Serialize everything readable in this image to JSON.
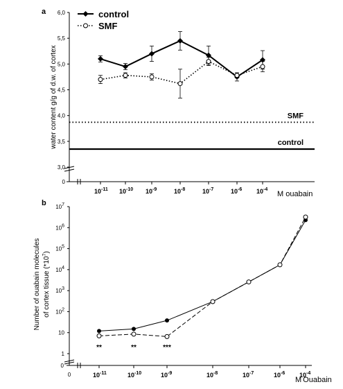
{
  "chart_data": [
    {
      "type": "line",
      "panel": "a",
      "ylabel": "water content g/g of d.w. of cortex",
      "xunit": "M ouabain",
      "categories": [
        "10^-11",
        "10^-10",
        "10^-9",
        "10^-8",
        "10^-7",
        "10^-6",
        "10^-4"
      ],
      "category_tick_labels": [
        [
          "10",
          "-11"
        ],
        [
          "10",
          "-10"
        ],
        [
          "10",
          "-9"
        ],
        [
          "10",
          "-8"
        ],
        [
          "10",
          "-7"
        ],
        [
          "10",
          "-6"
        ],
        [
          "10",
          "-4"
        ]
      ],
      "y_ticks": [
        "0",
        "3,0",
        "3,5",
        "4,0",
        "4,5",
        "5,0",
        "5,5",
        "6,0"
      ],
      "ylim": [
        3.0,
        6.0
      ],
      "y_break": true,
      "legend": [
        "control",
        "SMF"
      ],
      "legend_position": "top-left",
      "series": [
        {
          "name": "control",
          "values": [
            5.1,
            4.95,
            5.2,
            5.45,
            5.17,
            4.75,
            5.08
          ],
          "errors": [
            0.06,
            0.06,
            0.15,
            0.18,
            0.18,
            0.08,
            0.18
          ],
          "style": "solid",
          "marker": "filled-diamond"
        },
        {
          "name": "SMF",
          "values": [
            4.7,
            4.78,
            4.75,
            4.62,
            5.05,
            4.78,
            4.95
          ],
          "errors": [
            0.08,
            0.05,
            0.06,
            0.28,
            0.08,
            0.05,
            0.1
          ],
          "style": "dotted",
          "marker": "open-circle"
        }
      ],
      "reference_lines": [
        {
          "label": "SMF",
          "value": 3.87,
          "style": "dotted"
        },
        {
          "label": "control",
          "value": 3.35,
          "style": "solid"
        }
      ]
    },
    {
      "type": "line",
      "panel": "b",
      "ylabel_lines": [
        "Number of ouabain molecules",
        "of cortex tissue (*10",
        "7",
        ")"
      ],
      "yscale": "log",
      "xunit_prefix": "M",
      "xunit": "Ouabain",
      "categories": [
        "10^-11",
        "10^-10",
        "10^-9",
        "10^-8",
        "10^-7",
        "10^-6",
        "10^-4"
      ],
      "category_tick_labels": [
        [
          "10",
          "-11"
        ],
        [
          "10",
          "-10"
        ],
        [
          "10",
          "-9"
        ],
        [
          "10",
          "-8"
        ],
        [
          "10",
          "-7"
        ],
        [
          "10",
          "-6"
        ],
        [
          "10",
          "-4"
        ]
      ],
      "y_ticks": [
        [
          "1",
          ""
        ],
        [
          "10",
          ""
        ],
        [
          "10",
          "2"
        ],
        [
          "10",
          "3"
        ],
        [
          "10",
          "4"
        ],
        [
          "10",
          "5"
        ],
        [
          "10",
          "6"
        ],
        [
          "10",
          "7"
        ]
      ],
      "y_bottom_tick": "0",
      "x_origin_tick": "0",
      "ylim": [
        1,
        10000000
      ],
      "series": [
        {
          "name": "",
          "values": [
            12,
            15,
            38,
            300,
            2600,
            17000,
            2300000
          ],
          "style": "solid",
          "marker": "filled-circle"
        },
        {
          "name": "",
          "values": [
            7,
            8.5,
            6.5,
            300,
            2600,
            17000,
            3200000
          ],
          "style": "dashed",
          "marker": "open-circle"
        }
      ],
      "annotations": [
        "**",
        "**",
        "***"
      ]
    }
  ]
}
